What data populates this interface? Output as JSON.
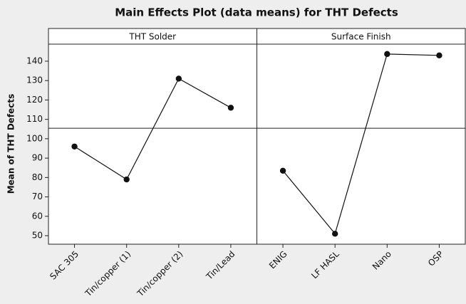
{
  "chart_data": {
    "type": "line",
    "title": "Main Effects Plot (data means) for THT Defects",
    "ylabel": "Mean of THT Defects",
    "ylim": [
      45.6,
      148.8
    ],
    "yticks": [
      50,
      60,
      70,
      80,
      90,
      100,
      110,
      120,
      130,
      140
    ],
    "mean_line": 105.4,
    "color": "#111111",
    "panels": [
      {
        "title": "THT Solder",
        "categories": [
          "SAC 305",
          "Tin/copper (1)",
          "Tin/copper (2)",
          "Tin/Lead"
        ],
        "values": [
          96,
          79,
          131,
          116
        ]
      },
      {
        "title": "Surface Finish",
        "categories": [
          "ENIG",
          "LF HASL",
          "Nano",
          "OSP"
        ],
        "values": [
          83.5,
          51,
          143.7,
          143
        ]
      }
    ]
  }
}
